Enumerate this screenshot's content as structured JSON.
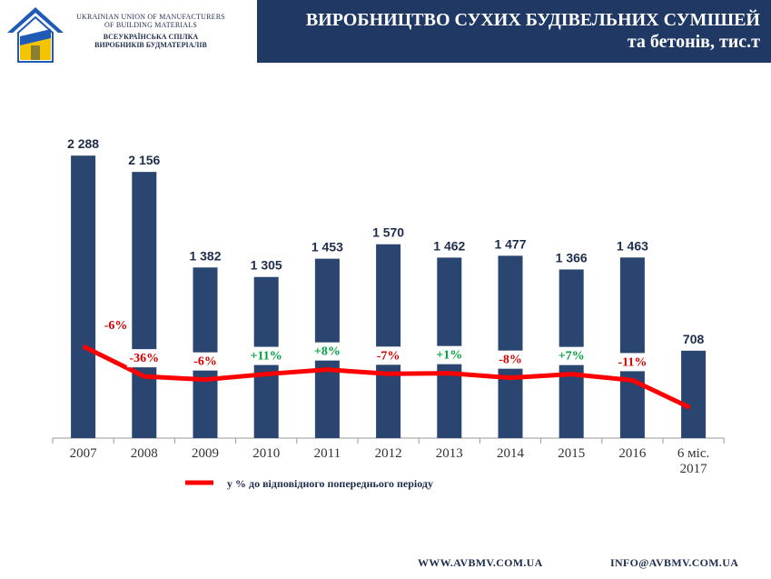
{
  "header": {
    "org_en_line1": "UKRAINIAN UNION OF MANUFACTURERS",
    "org_en_line2": "OF BUILDING MATERIALS",
    "org_ua_line1": "ВСЕУКРАЇНСЬКА СПІЛКА",
    "org_ua_line2": "ВИРОБНИКІВ БУДМАТЕРІАЛІВ",
    "title_line1": "ВИРОБНИЦТВО СУХИХ БУДІВЕЛЬНИХ СУМІШЕЙ",
    "title_line2": "та бетонів, тис.т"
  },
  "colors": {
    "bar": "#2a4570",
    "line": "#ff0000",
    "negative_label": "#d40000",
    "positive_label": "#00a03e",
    "title_bg": "#1f3864",
    "logo_blue": "#1f5bb5",
    "logo_yellow": "#f5c400"
  },
  "chart_data": {
    "type": "bar",
    "categories": [
      "2007",
      "2008",
      "2009",
      "2010",
      "2011",
      "2012",
      "2013",
      "2014",
      "2015",
      "2016",
      "6 міс.\n2017"
    ],
    "category_lines": [
      [
        "2007"
      ],
      [
        "2008"
      ],
      [
        "2009"
      ],
      [
        "2010"
      ],
      [
        "2011"
      ],
      [
        "2012"
      ],
      [
        "2013"
      ],
      [
        "2014"
      ],
      [
        "2015"
      ],
      [
        "2016"
      ],
      [
        "6 міс.",
        "2017"
      ]
    ],
    "values": [
      2288,
      2156,
      1382,
      1305,
      1453,
      1570,
      1462,
      1477,
      1366,
      1463,
      708
    ],
    "value_labels": [
      "2 288",
      "2 156",
      "1 382",
      "1 305",
      "1 453",
      "1 570",
      "1 462",
      "1 477",
      "1 366",
      "1 463",
      "708"
    ],
    "ylim": [
      0,
      2400
    ],
    "title": "",
    "xlabel": "",
    "ylabel": "",
    "line_series": {
      "name": "у % до відповідного попереднього періоду",
      "labels": [
        "-6%",
        "-36%",
        "-6%",
        "+11%",
        "+8%",
        "-7%",
        "+1%",
        "-8%",
        "+7%",
        "-11%"
      ],
      "values": [
        -6,
        -36,
        -6,
        11,
        8,
        -7,
        1,
        -8,
        7,
        -11
      ]
    },
    "legend_position": "bottom-left",
    "grid": false
  },
  "footer": {
    "website": "WWW.AVBMV.COM.UA",
    "email": "INFO@AVBMV.COM.UA"
  }
}
